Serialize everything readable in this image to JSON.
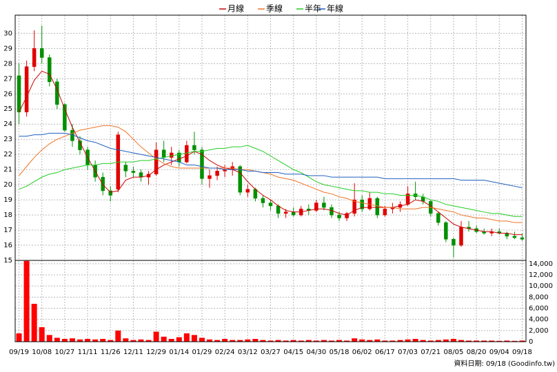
{
  "chart_data": [
    {
      "type": "candlestick",
      "categories": [
        "09/19",
        null,
        null,
        "10/08",
        null,
        null,
        "10/27",
        null,
        null,
        "11/11",
        null,
        null,
        "11/26",
        null,
        null,
        "12/11",
        null,
        null,
        "12/29",
        null,
        null,
        "01/14",
        null,
        null,
        "01/29",
        null,
        null,
        "02/24",
        null,
        null,
        "03/12",
        null,
        null,
        "03/27",
        null,
        null,
        "04/15",
        null,
        null,
        "04/30",
        null,
        null,
        "05/18",
        null,
        null,
        "06/02",
        null,
        null,
        "06/17",
        null,
        null,
        "07/03",
        null,
        null,
        "07/21",
        null,
        null,
        "08/05",
        null,
        null,
        "08/20",
        null,
        null,
        "09/04",
        null,
        null,
        "09/18"
      ],
      "open": [
        27.2,
        24.8,
        27.8,
        29.0,
        28.4,
        26.8,
        25.3,
        23.6,
        22.9,
        22.3,
        21.3,
        20.5,
        19.6,
        19.7,
        21.3,
        20.9,
        20.8,
        20.5,
        20.7,
        22.3,
        21.8,
        22.1,
        21.5,
        22.6,
        22.3,
        20.4,
        20.6,
        20.9,
        21.0,
        21.2,
        19.5,
        19.7,
        19.1,
        18.8,
        18.6,
        18.1,
        18.2,
        18.0,
        18.4,
        18.3,
        18.8,
        18.5,
        18.0,
        17.8,
        18.1,
        19.0,
        18.4,
        19.1,
        18.0,
        18.4,
        18.5,
        18.7,
        19.4,
        19.2,
        18.9,
        18.1,
        17.5,
        16.4,
        16.0,
        17.2,
        17.1,
        16.9,
        16.8,
        16.9,
        16.8,
        16.6,
        16.5
      ],
      "high": [
        28.0,
        28.2,
        30.2,
        30.5,
        28.6,
        27.0,
        25.4,
        24.0,
        23.2,
        22.5,
        21.6,
        20.8,
        19.9,
        23.5,
        21.5,
        21.2,
        21.0,
        20.9,
        22.8,
        22.9,
        22.5,
        22.3,
        22.9,
        23.5,
        22.5,
        21.0,
        21.2,
        21.3,
        21.5,
        21.3,
        20.0,
        19.8,
        19.3,
        19.0,
        18.7,
        18.4,
        18.5,
        18.6,
        18.7,
        19.0,
        19.2,
        18.7,
        18.2,
        18.2,
        20.1,
        19.3,
        19.5,
        19.2,
        18.6,
        18.8,
        18.9,
        19.9,
        20.2,
        19.4,
        19.0,
        18.2,
        17.6,
        16.5,
        17.6,
        17.6,
        17.3,
        17.1,
        17.1,
        17.1,
        16.9,
        16.9,
        16.8
      ],
      "low": [
        24.0,
        24.5,
        27.5,
        28.0,
        26.5,
        25.0,
        23.5,
        22.5,
        22.0,
        21.0,
        20.2,
        19.3,
        18.9,
        19.5,
        20.5,
        20.5,
        20.2,
        20.0,
        20.6,
        21.5,
        21.3,
        21.2,
        21.4,
        22.0,
        20.0,
        19.8,
        20.3,
        20.5,
        20.6,
        19.3,
        19.2,
        18.9,
        18.5,
        18.3,
        17.8,
        17.8,
        17.9,
        17.9,
        18.0,
        18.2,
        18.3,
        17.8,
        17.6,
        17.6,
        17.9,
        18.2,
        18.3,
        17.8,
        17.9,
        18.1,
        18.2,
        18.6,
        19.0,
        18.7,
        17.9,
        17.3,
        16.2,
        15.2,
        15.9,
        16.9,
        16.8,
        16.7,
        16.6,
        16.7,
        16.4,
        16.4,
        16.3
      ],
      "close": [
        24.8,
        27.8,
        29.0,
        28.4,
        26.8,
        25.3,
        23.6,
        22.9,
        22.3,
        21.3,
        20.5,
        19.6,
        19.3,
        23.3,
        20.9,
        20.8,
        20.5,
        20.7,
        22.3,
        21.8,
        22.1,
        21.5,
        22.6,
        22.3,
        20.4,
        20.6,
        20.9,
        21.0,
        21.2,
        19.5,
        19.7,
        19.1,
        18.8,
        18.6,
        18.1,
        18.2,
        18.0,
        18.4,
        18.3,
        18.8,
        18.5,
        18.0,
        17.8,
        18.1,
        19.0,
        18.4,
        19.1,
        18.0,
        18.4,
        18.5,
        18.7,
        19.4,
        19.2,
        18.9,
        18.1,
        17.5,
        16.4,
        16.0,
        17.2,
        17.1,
        16.9,
        16.8,
        16.9,
        16.8,
        16.6,
        16.5,
        16.4
      ],
      "up_color": "#e00000",
      "down_color": "#009000",
      "series": [
        {
          "name": "月線",
          "color": "#cc0000",
          "values": [
            24.8,
            25.8,
            26.9,
            27.5,
            27.3,
            26.3,
            25.0,
            23.8,
            22.8,
            21.8,
            20.9,
            20.0,
            19.5,
            19.6,
            20.3,
            20.5,
            20.5,
            20.6,
            21.0,
            21.3,
            21.5,
            21.7,
            21.9,
            22.2,
            22.0,
            21.6,
            21.3,
            21.1,
            21.0,
            20.8,
            20.2,
            19.7,
            19.3,
            19.0,
            18.6,
            18.3,
            18.2,
            18.2,
            18.3,
            18.4,
            18.4,
            18.3,
            18.1,
            18.0,
            18.3,
            18.5,
            18.5,
            18.5,
            18.5,
            18.5,
            18.6,
            18.7,
            19.0,
            18.9,
            18.6,
            18.2,
            17.8,
            17.4,
            17.2,
            17.1,
            17.0,
            16.9,
            16.9,
            16.8,
            16.8,
            16.7,
            16.7
          ]
        },
        {
          "name": "季線",
          "color": "#f07020",
          "values": [
            20.6,
            21.2,
            21.8,
            22.3,
            22.7,
            23.0,
            23.2,
            23.4,
            23.6,
            23.7,
            23.8,
            23.9,
            23.9,
            23.8,
            23.5,
            23.0,
            22.5,
            22.1,
            21.7,
            21.4,
            21.2,
            21.1,
            21.1,
            21.1,
            21.1,
            21.1,
            21.1,
            21.1,
            21.1,
            21.0,
            21.0,
            20.9,
            20.8,
            20.7,
            20.5,
            20.4,
            20.3,
            20.1,
            19.9,
            19.7,
            19.5,
            19.4,
            19.2,
            19.1,
            18.9,
            18.8,
            18.7,
            18.6,
            18.5,
            18.5,
            18.4,
            18.4,
            18.4,
            18.5,
            18.5,
            18.4,
            18.3,
            18.2,
            18.0,
            17.9,
            17.8,
            17.8,
            17.7,
            17.6,
            17.6,
            17.5,
            17.5
          ]
        },
        {
          "name": "半年",
          "color": "#22cc22",
          "values": [
            19.7,
            19.9,
            20.2,
            20.5,
            20.7,
            20.8,
            21.0,
            21.1,
            21.2,
            21.3,
            21.3,
            21.4,
            21.4,
            21.5,
            21.5,
            21.5,
            21.6,
            21.6,
            21.7,
            21.8,
            21.9,
            22.0,
            22.1,
            22.2,
            22.2,
            22.3,
            22.4,
            22.4,
            22.5,
            22.5,
            22.6,
            22.4,
            22.2,
            21.9,
            21.6,
            21.3,
            21.0,
            20.8,
            20.5,
            20.2,
            20.0,
            19.9,
            19.8,
            19.7,
            19.6,
            19.6,
            19.5,
            19.5,
            19.4,
            19.4,
            19.3,
            19.3,
            19.3,
            19.2,
            19.0,
            18.9,
            18.7,
            18.6,
            18.5,
            18.4,
            18.3,
            18.2,
            18.1,
            18.1,
            18.0,
            17.9,
            17.9
          ]
        },
        {
          "name": "年線",
          "color": "#1f5fbf",
          "values": [
            23.2,
            23.2,
            23.3,
            23.3,
            23.4,
            23.4,
            23.4,
            23.3,
            23.1,
            22.9,
            22.8,
            22.6,
            22.4,
            22.3,
            22.2,
            22.1,
            22.0,
            21.9,
            21.8,
            21.7,
            21.6,
            21.5,
            21.3,
            21.3,
            21.2,
            21.1,
            21.1,
            21.0,
            21.0,
            21.0,
            20.9,
            20.9,
            20.8,
            20.8,
            20.8,
            20.7,
            20.7,
            20.7,
            20.6,
            20.6,
            20.6,
            20.5,
            20.5,
            20.5,
            20.5,
            20.5,
            20.5,
            20.5,
            20.4,
            20.4,
            20.4,
            20.4,
            20.4,
            20.4,
            20.4,
            20.4,
            20.4,
            20.4,
            20.3,
            20.3,
            20.3,
            20.3,
            20.2,
            20.1,
            20.0,
            19.9,
            19.8
          ]
        }
      ],
      "ylim": [
        15,
        31.2
      ],
      "yticks": [
        15,
        16,
        17,
        18,
        19,
        20,
        21,
        22,
        23,
        24,
        25,
        26,
        27,
        28,
        29,
        30
      ],
      "grid": true
    },
    {
      "type": "bar",
      "color": "#ff0000",
      "values": [
        1500,
        14500,
        6800,
        2600,
        1200,
        700,
        500,
        600,
        400,
        500,
        400,
        500,
        300,
        2000,
        600,
        300,
        400,
        300,
        1800,
        900,
        500,
        800,
        1500,
        1200,
        700,
        400,
        300,
        500,
        300,
        300,
        400,
        500,
        300,
        200,
        300,
        200,
        300,
        200,
        300,
        200,
        300,
        200,
        300,
        200,
        600,
        400,
        300,
        400,
        200,
        200,
        300,
        400,
        500,
        300,
        200,
        300,
        400,
        500,
        300,
        200,
        200,
        200,
        200,
        150,
        200,
        150,
        200
      ],
      "ylim": [
        0,
        14600
      ],
      "yticks": [
        0,
        {
          "value": 2000,
          "label": "2,000"
        },
        {
          "value": 4000,
          "label": "4,000"
        },
        {
          "value": 6000,
          "label": "6,000"
        },
        {
          "value": 8000,
          "label": "8,000"
        },
        {
          "value": 10000,
          "label": "10,000"
        },
        {
          "value": 12000,
          "label": "12,000"
        },
        {
          "value": 14000,
          "label": "14,000"
        }
      ],
      "grid": true
    }
  ],
  "footnote": "資料日期: 09/18  (Goodinfo.tw)"
}
